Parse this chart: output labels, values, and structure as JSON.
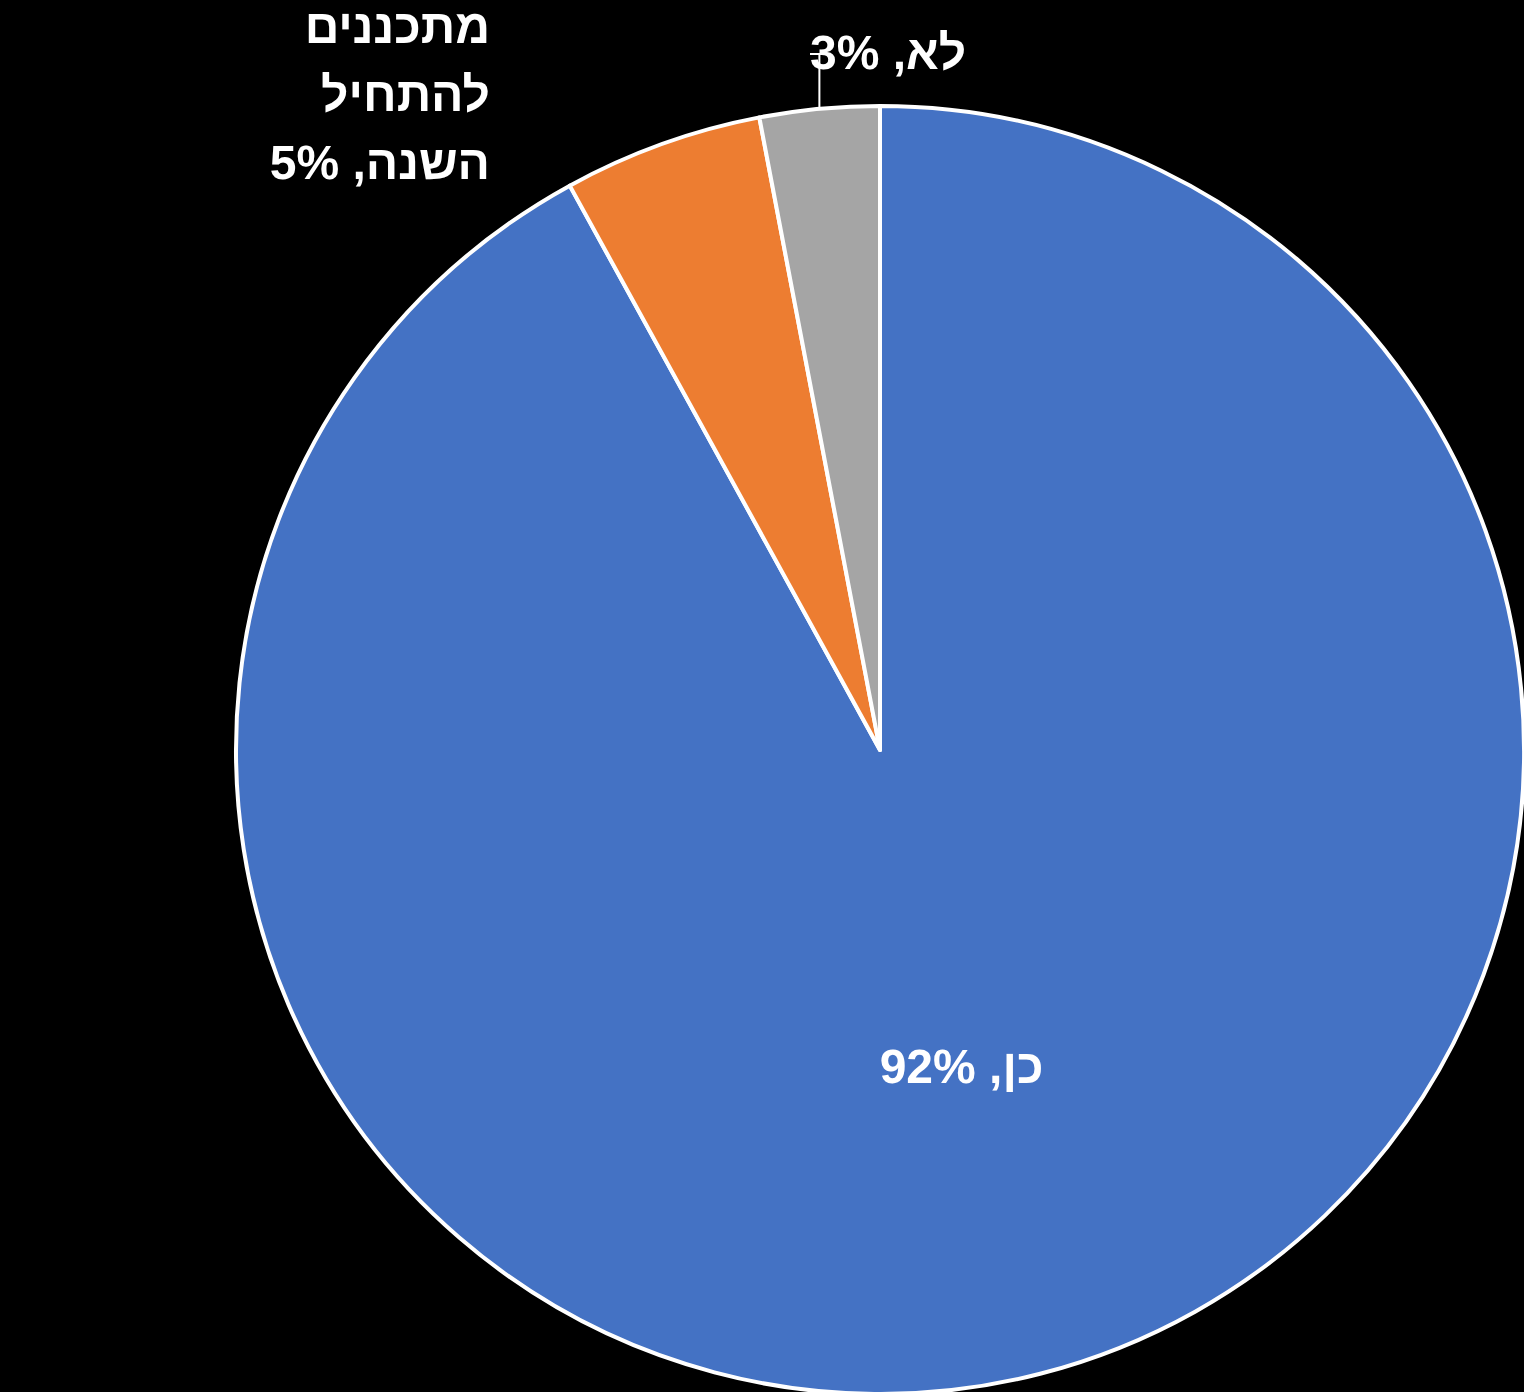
{
  "chart_data": {
    "type": "pie",
    "categories": [
      "כן",
      "מתכננים להתחיל השנה",
      "לא"
    ],
    "values": [
      92,
      5,
      3
    ],
    "value_labels": [
      "92%",
      "5%",
      "3%"
    ],
    "colors": [
      "#4472c4",
      "#ed7d31",
      "#a5a5a5"
    ],
    "legend": false
  }
}
